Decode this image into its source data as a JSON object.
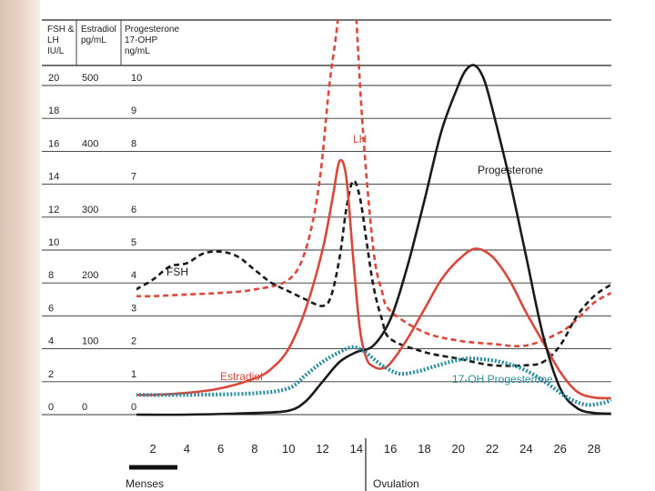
{
  "chart_data": {
    "type": "line",
    "xlabel": "",
    "x_ticks": [
      2,
      4,
      6,
      8,
      10,
      12,
      14,
      16,
      18,
      20,
      22,
      24,
      26,
      28
    ],
    "xlim": [
      1,
      29
    ],
    "headers": {
      "fsh_lh": [
        "FSH &",
        "LH",
        "IU/L"
      ],
      "estradiol": [
        "Estradiol",
        "pg/mL"
      ],
      "progesterone": [
        "Progesterone",
        "17-OHP",
        "ng/mL"
      ]
    },
    "axes": {
      "fsh_lh": {
        "ticks": [
          0,
          2,
          4,
          6,
          8,
          10,
          12,
          14,
          16,
          18,
          20
        ],
        "ylim": [
          0,
          24
        ]
      },
      "estradiol": {
        "ticks": [
          0,
          100,
          200,
          300,
          400,
          500
        ],
        "ylim": [
          0,
          600
        ]
      },
      "progesterone": {
        "ticks": [
          0,
          1,
          2,
          3,
          4,
          5,
          6,
          7,
          8,
          9,
          10
        ],
        "ylim": [
          0,
          12
        ]
      }
    },
    "series": [
      {
        "name": "LH",
        "axis": "fsh_lh",
        "color": "#d9483b",
        "style": "dashed",
        "points": [
          [
            1,
            7.2
          ],
          [
            2,
            7.2
          ],
          [
            4,
            7.3
          ],
          [
            6,
            7.4
          ],
          [
            8,
            7.6
          ],
          [
            10,
            8.2
          ],
          [
            11,
            10
          ],
          [
            11.8,
            14
          ],
          [
            12.4,
            20
          ],
          [
            12.9,
            24
          ],
          [
            13.3,
            30
          ],
          [
            13.7,
            30
          ],
          [
            14,
            24
          ],
          [
            14.4,
            17
          ],
          [
            15,
            10
          ],
          [
            15.5,
            7.5
          ],
          [
            16,
            6.3
          ],
          [
            18,
            5.0
          ],
          [
            20,
            4.5
          ],
          [
            22,
            4.3
          ],
          [
            24,
            4.2
          ],
          [
            26,
            5.0
          ],
          [
            27,
            5.8
          ],
          [
            28,
            6.8
          ],
          [
            29,
            7.4
          ]
        ]
      },
      {
        "name": "FSH",
        "axis": "fsh_lh",
        "color": "#1a1a1a",
        "style": "dashed",
        "points": [
          [
            1,
            7.6
          ],
          [
            2,
            8.2
          ],
          [
            3,
            9.0
          ],
          [
            4,
            9.2
          ],
          [
            5,
            9.8
          ],
          [
            6,
            9.9
          ],
          [
            7,
            9.6
          ],
          [
            8,
            8.8
          ],
          [
            9,
            8.0
          ],
          [
            10,
            7.5
          ],
          [
            11,
            7.0
          ],
          [
            12,
            6.6
          ],
          [
            12.5,
            7.2
          ],
          [
            13,
            9.5
          ],
          [
            13.4,
            12.5
          ],
          [
            13.8,
            14.2
          ],
          [
            14.2,
            13.2
          ],
          [
            14.6,
            10.5
          ],
          [
            15,
            7.8
          ],
          [
            15.5,
            5.8
          ],
          [
            16,
            4.6
          ],
          [
            18,
            3.8
          ],
          [
            20,
            3.4
          ],
          [
            22,
            3.0
          ],
          [
            24,
            3.0
          ],
          [
            25,
            3.2
          ],
          [
            26,
            4.2
          ],
          [
            27,
            6.0
          ],
          [
            28,
            7.2
          ],
          [
            29,
            7.9
          ]
        ]
      },
      {
        "name": "Estradiol",
        "axis": "estradiol",
        "color": "#d9483b",
        "style": "solid",
        "points": [
          [
            1,
            30
          ],
          [
            2,
            30
          ],
          [
            4,
            33
          ],
          [
            6,
            40
          ],
          [
            8,
            55
          ],
          [
            9,
            70
          ],
          [
            10,
            100
          ],
          [
            11,
            160
          ],
          [
            12,
            250
          ],
          [
            12.6,
            330
          ],
          [
            13,
            385
          ],
          [
            13.4,
            360
          ],
          [
            13.8,
            240
          ],
          [
            14.2,
            130
          ],
          [
            14.6,
            85
          ],
          [
            15,
            73
          ],
          [
            15.5,
            70
          ],
          [
            16,
            78
          ],
          [
            17,
            115
          ],
          [
            18,
            160
          ],
          [
            19,
            205
          ],
          [
            20,
            235
          ],
          [
            21,
            252
          ],
          [
            22,
            240
          ],
          [
            23,
            205
          ],
          [
            24,
            155
          ],
          [
            25,
            110
          ],
          [
            26,
            65
          ],
          [
            27,
            35
          ],
          [
            28,
            26
          ],
          [
            29,
            25
          ]
        ]
      },
      {
        "name": "Progesterone",
        "axis": "progesterone",
        "color": "#1a1a1a",
        "style": "solid",
        "points": [
          [
            1,
            0.0
          ],
          [
            4,
            0.0
          ],
          [
            8,
            0.05
          ],
          [
            10,
            0.12
          ],
          [
            11,
            0.4
          ],
          [
            12,
            1.0
          ],
          [
            13,
            1.6
          ],
          [
            14,
            1.9
          ],
          [
            15,
            2.1
          ],
          [
            16,
            2.9
          ],
          [
            17,
            4.5
          ],
          [
            18,
            6.5
          ],
          [
            19,
            8.6
          ],
          [
            20,
            10.0
          ],
          [
            20.5,
            10.5
          ],
          [
            21,
            10.6
          ],
          [
            21.5,
            10.2
          ],
          [
            22,
            9.3
          ],
          [
            23,
            7.2
          ],
          [
            24,
            4.8
          ],
          [
            25,
            2.4
          ],
          [
            26,
            0.8
          ],
          [
            27,
            0.2
          ],
          [
            28,
            0.05
          ],
          [
            29,
            0.03
          ]
        ]
      },
      {
        "name": "17-OH Progesterone",
        "axis": "progesterone",
        "color": "#2b8c9e",
        "style": "dotted",
        "points": [
          [
            1,
            0.6
          ],
          [
            4,
            0.6
          ],
          [
            8,
            0.65
          ],
          [
            10,
            0.8
          ],
          [
            11,
            1.2
          ],
          [
            12,
            1.6
          ],
          [
            13,
            1.9
          ],
          [
            13.8,
            2.05
          ],
          [
            14.5,
            1.9
          ],
          [
            15.5,
            1.5
          ],
          [
            16.5,
            1.25
          ],
          [
            17.5,
            1.3
          ],
          [
            18.5,
            1.45
          ],
          [
            19.5,
            1.6
          ],
          [
            20.5,
            1.7
          ],
          [
            21.5,
            1.68
          ],
          [
            22.5,
            1.6
          ],
          [
            23.5,
            1.45
          ],
          [
            24.5,
            1.2
          ],
          [
            25.5,
            0.85
          ],
          [
            26.5,
            0.5
          ],
          [
            27.5,
            0.3
          ],
          [
            28.5,
            0.35
          ],
          [
            29,
            0.45
          ]
        ]
      }
    ],
    "annotations": {
      "menses": "Menses",
      "ovulation": "Ovulation"
    },
    "grid": true,
    "legend": "labels inline next to curves"
  }
}
